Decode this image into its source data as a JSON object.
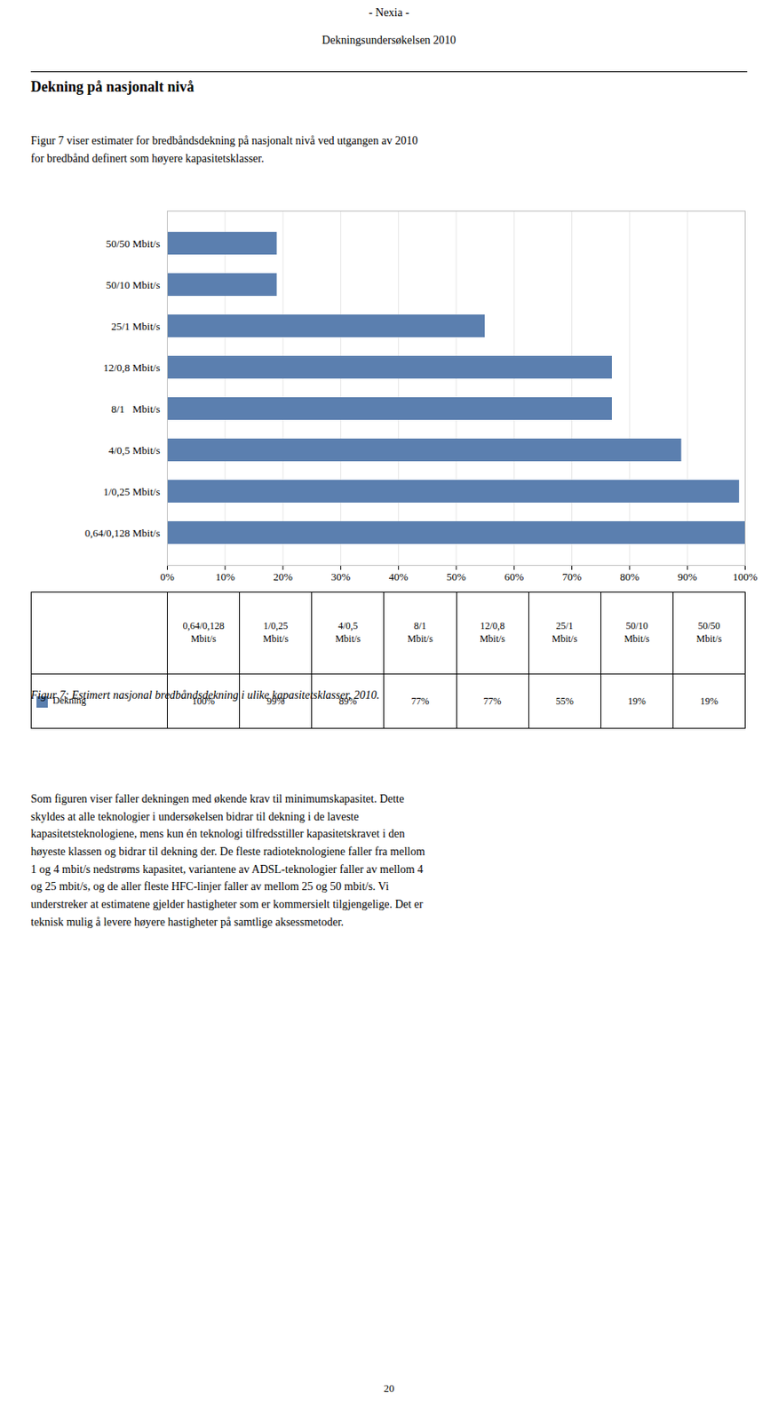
{
  "chart_data": {
    "type": "bar",
    "orientation": "horizontal",
    "header": [
      "- Nexia -",
      "Dekningsundersøkelsen 2010"
    ],
    "title": "Dekning på nasjonalt nivå",
    "intro": "Figur 7 viser estimater for bredbåndsdekning på nasjonalt nivå ved utgangen av 2010\nfor bredbånd definert som høyere kapasitetsklasser.",
    "categories": [
      "50/50 Mbit/s",
      "50/10 Mbit/s",
      "25/1 Mbit/s",
      "12/0,8 Mbit/s",
      "8/1   Mbit/s",
      "4/0,5 Mbit/s",
      "1/0,25 Mbit/s",
      "0,64/0,128 Mbit/s"
    ],
    "values": [
      19,
      19,
      55,
      77,
      77,
      89,
      99,
      100
    ],
    "color": "#5b7faf",
    "xlim": [
      0,
      100
    ],
    "xticks": [
      {
        "value": 0,
        "label": "0%"
      },
      {
        "value": 10,
        "label": "10%"
      },
      {
        "value": 20,
        "label": "20%"
      },
      {
        "value": 30,
        "label": "30%"
      },
      {
        "value": 40,
        "label": "40%"
      },
      {
        "value": 50,
        "label": "50%"
      },
      {
        "value": 60,
        "label": "60%"
      },
      {
        "value": 70,
        "label": "70%"
      },
      {
        "value": 80,
        "label": "80%"
      },
      {
        "value": 90,
        "label": "90%"
      },
      {
        "value": 100,
        "label": "100%"
      }
    ],
    "grid": true,
    "table": {
      "row_label": "Dekning",
      "categories": [
        "0,64/0,128\nMbit/s",
        "1/0,25\nMbit/s",
        "4/0,5\nMbit/s",
        "8/1\nMbit/s",
        "12/0,8\nMbit/s",
        "25/1\nMbit/s",
        "50/10\nMbit/s",
        "50/50\nMbit/s"
      ],
      "values": [
        100,
        99,
        89,
        77,
        77,
        55,
        19,
        19
      ],
      "value_labels": [
        "100%",
        "99%",
        "89%",
        "77%",
        "77%",
        "55%",
        "19%",
        "19%"
      ]
    },
    "caption": "Figur 7: Estimert nasjonal bredbåndsdekning i ulike kapasitetsklasser, 2010.",
    "body": [
      "Som figuren viser faller dekningen med økende krav til minimumskapasitet. Dette",
      "skyldes at alle teknologier i undersøkelsen bidrar til dekning i de laveste",
      "kapasitetsteknologiene, mens kun én teknologi tilfredsstiller kapasitetskravet i den",
      "høyeste klassen og bidrar til dekning der. De fleste radioteknologiene faller fra mellom",
      "1 og 4 mbit/s nedstrøms kapasitet, variantene av ADSL-teknologier faller av mellom 4",
      "og 25 mbit/s, og de aller fleste HFC-linjer faller av mellom 25 og 50 mbit/s. Vi",
      "understreker at estimatene gjelder hastigheter som er kommersielt tilgjengelige. Det er",
      "teknisk mulig å levere høyere hastigheter på samtlige aksessmetoder."
    ],
    "page_number": "20"
  }
}
